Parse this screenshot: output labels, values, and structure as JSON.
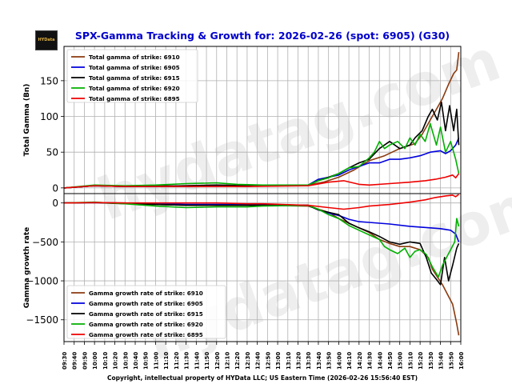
{
  "logo": {
    "text": "HYData"
  },
  "watermark": "hydatag.com",
  "colors": {
    "title": "#0000cc",
    "s6910": "#8b3a0f",
    "s6905": "#0000dd",
    "s6915": "#000000",
    "s6920": "#00b000",
    "s6895": "#ee0000",
    "grid": "#b0b0b0"
  },
  "chart_data": {
    "type": "line",
    "title": "SPX-Gamma Tracking & Growth for: 2026-02-26 (spot: 6905) (G30)",
    "footer": "Copyright, intellectual property of HYData LLC; US Eastern Time (2026-02-26 15:56:40 EST)",
    "x_tick_labels": [
      "09:30",
      "09:40",
      "09:50",
      "10:00",
      "10:10",
      "10:20",
      "10:30",
      "10:40",
      "10:50",
      "11:00",
      "11:10",
      "11:20",
      "11:30",
      "11:40",
      "11:50",
      "12:00",
      "12:10",
      "12:20",
      "12:30",
      "12:40",
      "12:50",
      "13:00",
      "13:10",
      "13:20",
      "13:30",
      "13:40",
      "13:50",
      "14:00",
      "14:10",
      "14:20",
      "14:30",
      "14:40",
      "14:50",
      "15:00",
      "15:10",
      "15:20",
      "15:30",
      "15:40",
      "15:50",
      "16:00"
    ],
    "x_minutes_range": [
      0,
      390
    ],
    "upper": {
      "ylabel": "Total Gamma (Bn)",
      "ylim": [
        -8,
        198
      ],
      "yticks": [
        0,
        50,
        100,
        150
      ],
      "legend": "top-left",
      "series": [
        {
          "name": "Total gamma of strike: 6910",
          "key": "s6910",
          "points": [
            [
              0,
              0
            ],
            [
              30,
              3
            ],
            [
              60,
              2
            ],
            [
              120,
              3
            ],
            [
              150,
              4
            ],
            [
              180,
              3
            ],
            [
              195,
              3
            ],
            [
              240,
              4
            ],
            [
              255,
              8
            ],
            [
              270,
              15
            ],
            [
              285,
              25
            ],
            [
              300,
              38
            ],
            [
              315,
              45
            ],
            [
              330,
              55
            ],
            [
              345,
              62
            ],
            [
              352,
              75
            ],
            [
              360,
              95
            ],
            [
              366,
              110
            ],
            [
              372,
              125
            ],
            [
              378,
              145
            ],
            [
              383,
              160
            ],
            [
              386,
              165
            ],
            [
              388,
              190
            ]
          ]
        },
        {
          "name": "Total gamma of strike: 6905",
          "key": "s6905",
          "points": [
            [
              0,
              0
            ],
            [
              30,
              3
            ],
            [
              60,
              2
            ],
            [
              120,
              2
            ],
            [
              150,
              3
            ],
            [
              180,
              2
            ],
            [
              195,
              3
            ],
            [
              240,
              4
            ],
            [
              250,
              12
            ],
            [
              260,
              15
            ],
            [
              270,
              18
            ],
            [
              280,
              25
            ],
            [
              290,
              30
            ],
            [
              300,
              35
            ],
            [
              310,
              35
            ],
            [
              320,
              40
            ],
            [
              330,
              40
            ],
            [
              340,
              42
            ],
            [
              350,
              45
            ],
            [
              360,
              50
            ],
            [
              370,
              52
            ],
            [
              375,
              48
            ],
            [
              380,
              52
            ],
            [
              385,
              60
            ],
            [
              388,
              70
            ]
          ]
        },
        {
          "name": "Total gamma of strike: 6915",
          "key": "s6915",
          "points": [
            [
              0,
              0
            ],
            [
              30,
              3
            ],
            [
              60,
              2
            ],
            [
              120,
              3
            ],
            [
              150,
              4
            ],
            [
              180,
              3
            ],
            [
              195,
              3
            ],
            [
              240,
              4
            ],
            [
              250,
              10
            ],
            [
              260,
              15
            ],
            [
              270,
              20
            ],
            [
              280,
              28
            ],
            [
              290,
              35
            ],
            [
              300,
              40
            ],
            [
              310,
              55
            ],
            [
              320,
              65
            ],
            [
              330,
              55
            ],
            [
              340,
              60
            ],
            [
              345,
              70
            ],
            [
              352,
              80
            ],
            [
              358,
              100
            ],
            [
              362,
              110
            ],
            [
              367,
              95
            ],
            [
              371,
              120
            ],
            [
              375,
              80
            ],
            [
              379,
              115
            ],
            [
              383,
              80
            ],
            [
              386,
              110
            ],
            [
              388,
              60
            ]
          ]
        },
        {
          "name": "Total gamma of strike: 6920",
          "key": "s6920",
          "points": [
            [
              0,
              0
            ],
            [
              30,
              4
            ],
            [
              60,
              3
            ],
            [
              90,
              4
            ],
            [
              120,
              6
            ],
            [
              150,
              7
            ],
            [
              170,
              5
            ],
            [
              195,
              4
            ],
            [
              240,
              4
            ],
            [
              250,
              10
            ],
            [
              260,
              14
            ],
            [
              270,
              20
            ],
            [
              280,
              28
            ],
            [
              290,
              30
            ],
            [
              300,
              42
            ],
            [
              305,
              50
            ],
            [
              310,
              65
            ],
            [
              315,
              55
            ],
            [
              320,
              60
            ],
            [
              328,
              65
            ],
            [
              335,
              55
            ],
            [
              340,
              70
            ],
            [
              345,
              60
            ],
            [
              350,
              75
            ],
            [
              355,
              65
            ],
            [
              360,
              90
            ],
            [
              366,
              60
            ],
            [
              370,
              85
            ],
            [
              375,
              50
            ],
            [
              380,
              65
            ],
            [
              385,
              40
            ],
            [
              388,
              20
            ]
          ]
        },
        {
          "name": "Total gamma of strike: 6895",
          "key": "s6895",
          "points": [
            [
              0,
              0
            ],
            [
              30,
              3
            ],
            [
              60,
              2
            ],
            [
              120,
              2
            ],
            [
              180,
              2
            ],
            [
              240,
              3
            ],
            [
              260,
              8
            ],
            [
              275,
              10
            ],
            [
              290,
              5
            ],
            [
              300,
              4
            ],
            [
              320,
              6
            ],
            [
              340,
              8
            ],
            [
              355,
              10
            ],
            [
              365,
              12
            ],
            [
              375,
              15
            ],
            [
              382,
              18
            ],
            [
              385,
              14
            ],
            [
              388,
              20
            ]
          ]
        }
      ]
    },
    "lower": {
      "ylabel": "Gamma growth rate",
      "ylim": [
        -1780,
        120
      ],
      "yticks": [
        0,
        -500,
        -1000,
        -1500
      ],
      "legend": "bottom-left",
      "series": [
        {
          "name": "Gamma growth rate of strike: 6910",
          "key": "s6910",
          "points": [
            [
              0,
              0
            ],
            [
              30,
              5
            ],
            [
              60,
              0
            ],
            [
              90,
              -20
            ],
            [
              120,
              -30
            ],
            [
              150,
              -30
            ],
            [
              180,
              -30
            ],
            [
              195,
              -30
            ],
            [
              240,
              -40
            ],
            [
              250,
              -80
            ],
            [
              260,
              -120
            ],
            [
              270,
              -200
            ],
            [
              280,
              -260
            ],
            [
              290,
              -320
            ],
            [
              300,
              -380
            ],
            [
              310,
              -470
            ],
            [
              320,
              -520
            ],
            [
              330,
              -560
            ],
            [
              340,
              -560
            ],
            [
              350,
              -600
            ],
            [
              358,
              -700
            ],
            [
              362,
              -850
            ],
            [
              367,
              -950
            ],
            [
              372,
              -1050
            ],
            [
              378,
              -1200
            ],
            [
              382,
              -1300
            ],
            [
              386,
              -1550
            ],
            [
              388,
              -1700
            ]
          ]
        },
        {
          "name": "Gamma growth rate of strike: 6905",
          "key": "s6905",
          "points": [
            [
              0,
              0
            ],
            [
              30,
              5
            ],
            [
              60,
              -5
            ],
            [
              90,
              -10
            ],
            [
              120,
              -20
            ],
            [
              150,
              -20
            ],
            [
              180,
              -20
            ],
            [
              195,
              -20
            ],
            [
              240,
              -30
            ],
            [
              250,
              -90
            ],
            [
              260,
              -130
            ],
            [
              270,
              -160
            ],
            [
              280,
              -210
            ],
            [
              290,
              -240
            ],
            [
              300,
              -250
            ],
            [
              320,
              -270
            ],
            [
              340,
              -300
            ],
            [
              360,
              -320
            ],
            [
              370,
              -330
            ],
            [
              380,
              -350
            ],
            [
              385,
              -400
            ],
            [
              388,
              -500
            ]
          ]
        },
        {
          "name": "Gamma growth rate of strike: 6915",
          "key": "s6915",
          "points": [
            [
              0,
              0
            ],
            [
              30,
              5
            ],
            [
              60,
              -10
            ],
            [
              90,
              -20
            ],
            [
              120,
              -30
            ],
            [
              150,
              -30
            ],
            [
              180,
              -30
            ],
            [
              195,
              -30
            ],
            [
              240,
              -30
            ],
            [
              250,
              -90
            ],
            [
              260,
              -120
            ],
            [
              270,
              -150
            ],
            [
              280,
              -260
            ],
            [
              290,
              -320
            ],
            [
              300,
              -370
            ],
            [
              310,
              -430
            ],
            [
              320,
              -500
            ],
            [
              330,
              -530
            ],
            [
              340,
              -500
            ],
            [
              350,
              -520
            ],
            [
              356,
              -700
            ],
            [
              361,
              -900
            ],
            [
              366,
              -980
            ],
            [
              370,
              -1050
            ],
            [
              374,
              -700
            ],
            [
              378,
              -1000
            ],
            [
              382,
              -800
            ],
            [
              386,
              -580
            ],
            [
              388,
              -520
            ]
          ]
        },
        {
          "name": "Gamma growth rate of strike: 6920",
          "key": "s6920",
          "points": [
            [
              0,
              0
            ],
            [
              30,
              10
            ],
            [
              60,
              -10
            ],
            [
              90,
              -40
            ],
            [
              120,
              -60
            ],
            [
              150,
              -50
            ],
            [
              180,
              -50
            ],
            [
              195,
              -40
            ],
            [
              240,
              -30
            ],
            [
              250,
              -80
            ],
            [
              260,
              -150
            ],
            [
              270,
              -200
            ],
            [
              280,
              -290
            ],
            [
              290,
              -350
            ],
            [
              300,
              -410
            ],
            [
              310,
              -470
            ],
            [
              315,
              -560
            ],
            [
              320,
              -600
            ],
            [
              328,
              -650
            ],
            [
              335,
              -580
            ],
            [
              340,
              -700
            ],
            [
              345,
              -620
            ],
            [
              350,
              -600
            ],
            [
              356,
              -660
            ],
            [
              362,
              -820
            ],
            [
              368,
              -950
            ],
            [
              372,
              -800
            ],
            [
              376,
              -700
            ],
            [
              380,
              -600
            ],
            [
              384,
              -500
            ],
            [
              386,
              -200
            ],
            [
              388,
              -300
            ]
          ]
        },
        {
          "name": "Gamma growth rate of strike: 6895",
          "key": "s6895",
          "points": [
            [
              0,
              0
            ],
            [
              30,
              5
            ],
            [
              60,
              0
            ],
            [
              90,
              0
            ],
            [
              120,
              0
            ],
            [
              150,
              0
            ],
            [
              180,
              -10
            ],
            [
              195,
              -10
            ],
            [
              240,
              -30
            ],
            [
              260,
              -60
            ],
            [
              275,
              -80
            ],
            [
              290,
              -60
            ],
            [
              300,
              -40
            ],
            [
              320,
              -20
            ],
            [
              340,
              10
            ],
            [
              355,
              40
            ],
            [
              365,
              70
            ],
            [
              375,
              90
            ],
            [
              382,
              100
            ],
            [
              385,
              80
            ],
            [
              388,
              110
            ]
          ]
        }
      ]
    }
  }
}
